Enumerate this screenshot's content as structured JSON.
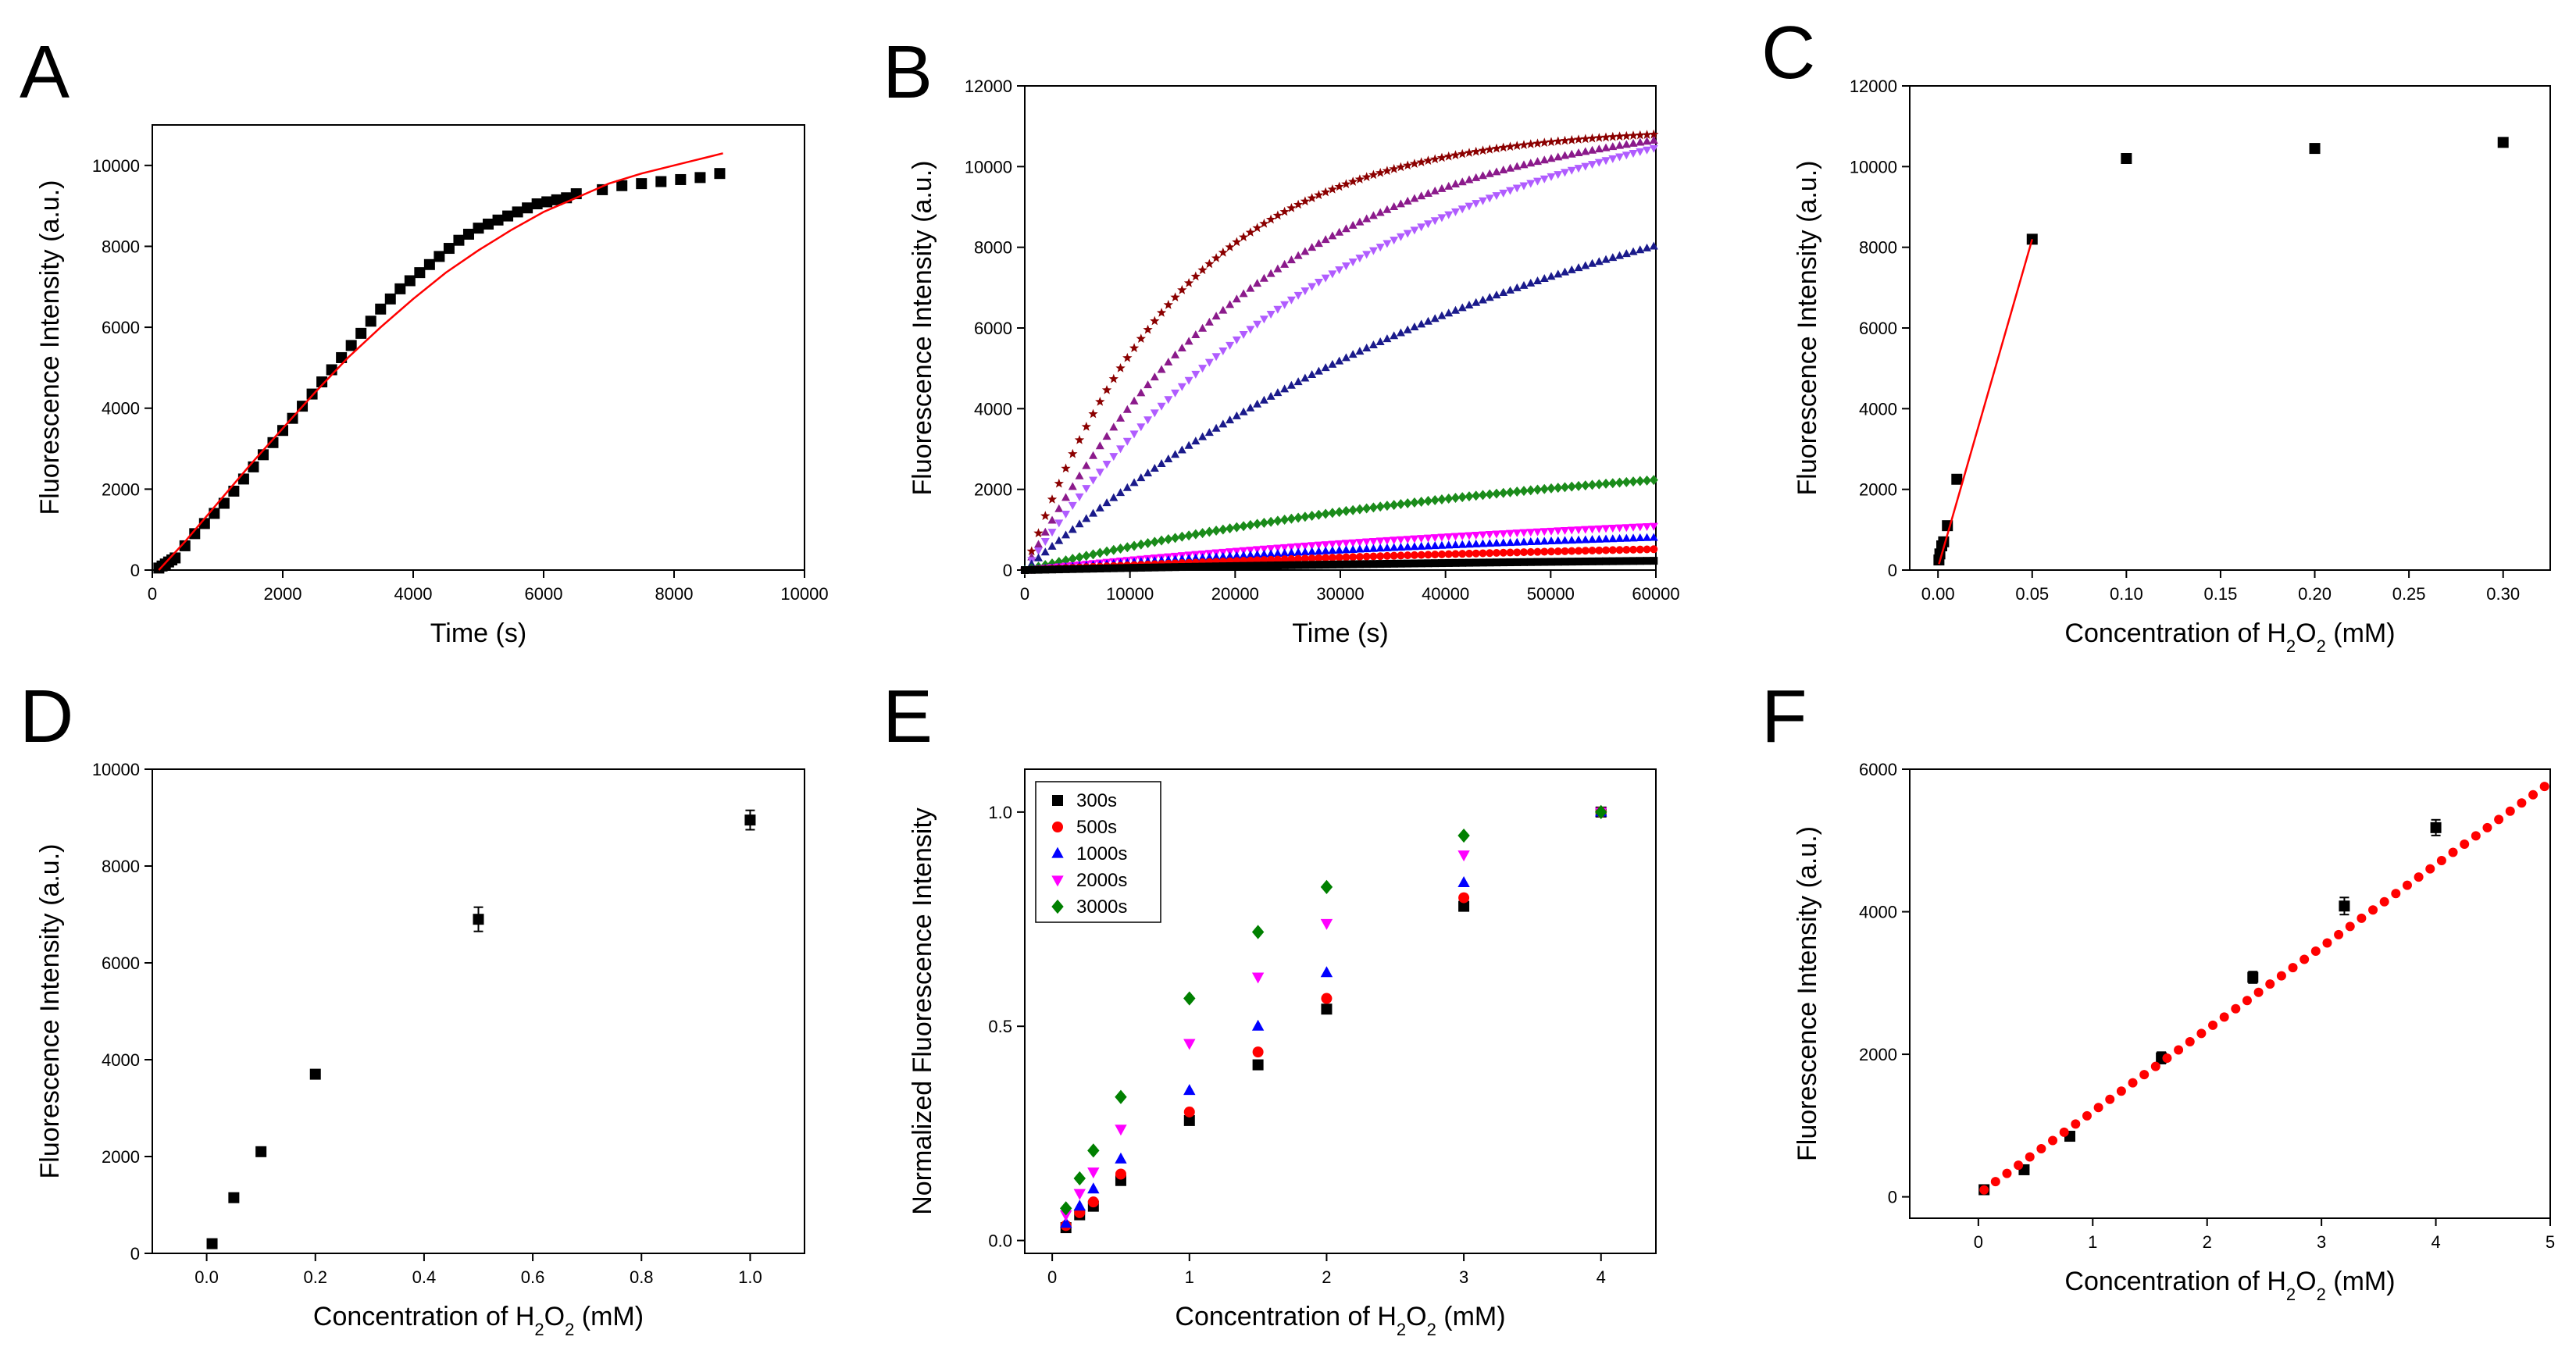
{
  "chart_data": [
    {
      "panel": "A",
      "type": "scatter",
      "xlabel": "Time (s)",
      "ylabel": "Fluorescence Intensity (a.u.)",
      "xlim": [
        0,
        10000
      ],
      "ylim": [
        0,
        11000
      ],
      "xticks": [
        0,
        2000,
        4000,
        6000,
        8000,
        10000
      ],
      "yticks": [
        0,
        2000,
        4000,
        6000,
        8000,
        10000
      ],
      "series": [
        {
          "name": "data",
          "color": "#000000",
          "marker": "square",
          "x": [
            100,
            150,
            200,
            250,
            300,
            350,
            500,
            650,
            800,
            950,
            1100,
            1250,
            1400,
            1550,
            1700,
            1850,
            2000,
            2150,
            2300,
            2450,
            2600,
            2750,
            2900,
            3050,
            3200,
            3350,
            3500,
            3650,
            3800,
            3950,
            4100,
            4250,
            4400,
            4550,
            4700,
            4850,
            5000,
            5150,
            5300,
            5450,
            5600,
            5750,
            5900,
            6050,
            6200,
            6350,
            6500,
            6900,
            7200,
            7500,
            7800,
            8100,
            8400,
            8700
          ],
          "y": [
            50,
            100,
            150,
            200,
            250,
            300,
            600,
            900,
            1150,
            1400,
            1650,
            1950,
            2250,
            2550,
            2850,
            3150,
            3450,
            3750,
            4050,
            4350,
            4650,
            4950,
            5250,
            5550,
            5850,
            6150,
            6450,
            6700,
            6950,
            7150,
            7350,
            7550,
            7750,
            7950,
            8150,
            8300,
            8450,
            8550,
            8650,
            8750,
            8850,
            8950,
            9050,
            9100,
            9150,
            9200,
            9300,
            9400,
            9500,
            9550,
            9600,
            9650,
            9700,
            9800
          ]
        },
        {
          "name": "fit",
          "color": "#ff0000",
          "style": "line",
          "x": [
            100,
            500,
            1000,
            1500,
            2000,
            2500,
            3000,
            3500,
            4000,
            4500,
            5000,
            5500,
            6000,
            6500,
            7000,
            7500,
            8000,
            8500,
            8750
          ],
          "y": [
            0,
            700,
            1650,
            2600,
            3500,
            4400,
            5250,
            6000,
            6700,
            7350,
            7900,
            8400,
            8850,
            9200,
            9550,
            9800,
            10000,
            10200,
            10300
          ]
        }
      ]
    },
    {
      "panel": "B",
      "type": "scatter",
      "xlabel": "Time (s)",
      "ylabel": "Fluorescence Intensity (a.u.)",
      "xlim": [
        0,
        60000
      ],
      "ylim": [
        0,
        12000
      ],
      "xticks": [
        0,
        10000,
        20000,
        30000,
        40000,
        50000,
        60000
      ],
      "yticks": [
        0,
        2000,
        4000,
        6000,
        8000,
        10000,
        12000
      ],
      "curves": [
        {
          "color": "#8b0000",
          "marker": "star",
          "amax": 11000,
          "tau": 15000
        },
        {
          "color": "#8b1a8b",
          "marker": "triangle",
          "amax": 11500,
          "tau": 23000
        },
        {
          "color": "#b05cff",
          "marker": "triangle-down",
          "amax": 12500,
          "tau": 33000
        },
        {
          "color": "#1a1a8b",
          "marker": "triangle",
          "amax": 11500,
          "tau": 50000
        },
        {
          "color": "#1a8b1a",
          "marker": "diamond",
          "amax": 3200,
          "tau": 50000
        },
        {
          "color": "#ff00ff",
          "marker": "triangle-down",
          "amax": 1900,
          "tau": 70000
        },
        {
          "color": "#0000ff",
          "marker": "triangle",
          "amax": 1400,
          "tau": 70000
        },
        {
          "color": "#ff0000",
          "marker": "circle",
          "amax": 900,
          "tau": 70000
        },
        {
          "color": "#000000",
          "marker": "square",
          "amax": 400,
          "tau": 70000
        }
      ]
    },
    {
      "panel": "C",
      "type": "scatter",
      "xlabel_main": "Concentration of H",
      "xlabel_sub1": "2",
      "xlabel_mid": "O",
      "xlabel_sub2": "2",
      "xlabel_end": " (mM)",
      "ylabel": "Fluorescence Intensity (a.u.)",
      "xlim": [
        -0.015,
        0.325
      ],
      "ylim": [
        0,
        12000
      ],
      "xticks": [
        0.0,
        0.05,
        0.1,
        0.15,
        0.2,
        0.25,
        0.3
      ],
      "xtick_labels": [
        "0.00",
        "0.05",
        "0.10",
        "0.15",
        "0.20",
        "0.25",
        "0.30"
      ],
      "yticks": [
        0,
        2000,
        4000,
        6000,
        8000,
        10000,
        12000
      ],
      "series": [
        {
          "name": "data",
          "color": "#000000",
          "marker": "square",
          "x": [
            0.0005,
            0.001,
            0.002,
            0.003,
            0.005,
            0.01,
            0.05,
            0.1,
            0.2,
            0.3
          ],
          "y": [
            250,
            400,
            600,
            700,
            1100,
            2250,
            8200,
            10200,
            10450,
            10600
          ]
        },
        {
          "name": "fit",
          "color": "#ff0000",
          "style": "line",
          "x": [
            0.0005,
            0.05
          ],
          "y": [
            150,
            8200
          ]
        }
      ]
    },
    {
      "panel": "D",
      "type": "scatter",
      "xlabel_main": "Concentration of H",
      "xlabel_sub1": "2",
      "xlabel_mid": "O",
      "xlabel_sub2": "2",
      "xlabel_end": " (mM)",
      "ylabel": "Fluorescence Intensity (a.u.)",
      "xlim": [
        -0.1,
        1.1
      ],
      "ylim": [
        0,
        10000
      ],
      "xticks": [
        0.0,
        0.2,
        0.4,
        0.6,
        0.8,
        1.0
      ],
      "xtick_labels": [
        "0.0",
        "0.2",
        "0.4",
        "0.6",
        "0.8",
        "1.0"
      ],
      "yticks": [
        0,
        2000,
        4000,
        6000,
        8000,
        10000
      ],
      "series": [
        {
          "name": "data",
          "color": "#000000",
          "marker": "square",
          "x": [
            0.01,
            0.05,
            0.1,
            0.2,
            0.5,
            1.0
          ],
          "y": [
            200,
            1150,
            2100,
            3700,
            6900,
            8950
          ],
          "err": [
            60,
            80,
            70,
            80,
            250,
            200
          ]
        }
      ]
    },
    {
      "panel": "E",
      "type": "scatter",
      "xlabel_main": "Concentration of H",
      "xlabel_sub1": "2",
      "xlabel_mid": "O",
      "xlabel_sub2": "2",
      "xlabel_end": " (mM)",
      "ylabel": "Normalized Fluorescence Intensity",
      "xlim": [
        -0.2,
        4.4
      ],
      "ylim": [
        -0.03,
        1.1
      ],
      "xticks": [
        0,
        1,
        2,
        3,
        4
      ],
      "xtick_labels": [
        "0",
        "1",
        "2",
        "3",
        "4"
      ],
      "yticks": [
        0.0,
        0.5,
        1.0
      ],
      "ytick_labels": [
        "0.0",
        "0.5",
        "1.0"
      ],
      "legend_position": "top-left",
      "x": [
        0.1,
        0.2,
        0.3,
        0.5,
        1,
        1.5,
        2,
        3,
        4
      ],
      "series": [
        {
          "name": "300s",
          "color": "#000000",
          "marker": "square",
          "values": [
            0.03,
            0.06,
            0.08,
            0.14,
            0.28,
            0.41,
            0.54,
            0.78,
            1.0
          ]
        },
        {
          "name": "500s",
          "color": "#ff0000",
          "marker": "circle",
          "values": [
            0.035,
            0.065,
            0.09,
            0.155,
            0.3,
            0.44,
            0.565,
            0.8,
            1.0
          ]
        },
        {
          "name": "1000s",
          "color": "#0000ff",
          "marker": "triangle",
          "values": [
            0.04,
            0.08,
            0.12,
            0.19,
            0.35,
            0.5,
            0.625,
            0.835,
            1.0
          ]
        },
        {
          "name": "2000s",
          "color": "#ff00ff",
          "marker": "triangle-down",
          "values": [
            0.06,
            0.11,
            0.16,
            0.26,
            0.46,
            0.615,
            0.74,
            0.9,
            1.0
          ]
        },
        {
          "name": "3000s",
          "color": "#008000",
          "marker": "diamond",
          "values": [
            0.075,
            0.145,
            0.21,
            0.335,
            0.565,
            0.72,
            0.825,
            0.945,
            1.0
          ]
        }
      ]
    },
    {
      "panel": "F",
      "type": "scatter",
      "xlabel_main": "Concentration of H",
      "xlabel_sub1": "2",
      "xlabel_mid": "O",
      "xlabel_sub2": "2",
      "xlabel_end": " (mM)",
      "ylabel": "Fluorescence Intensity (a.u.)",
      "xlim": [
        -0.6,
        5.0
      ],
      "ylim": [
        -300,
        6000
      ],
      "xticks": [
        0,
        1,
        2,
        3,
        4,
        5
      ],
      "xtick_labels": [
        "0",
        "1",
        "2",
        "3",
        "4",
        "5"
      ],
      "yticks": [
        0,
        2000,
        4000,
        6000
      ],
      "series": [
        {
          "name": "data",
          "color": "#000000",
          "marker": "square",
          "x": [
            0.05,
            0.4,
            0.8,
            1.6,
            2.4,
            3.2,
            4.0
          ],
          "y": [
            100,
            380,
            850,
            1950,
            3080,
            4080,
            5180
          ],
          "err": [
            40,
            60,
            50,
            80,
            80,
            120,
            110
          ]
        },
        {
          "name": "fit",
          "color": "#ff0000",
          "style": "dots",
          "slope": 1155,
          "intercept": 40,
          "x_start": 0.05,
          "x_end": 5.0
        }
      ]
    }
  ]
}
